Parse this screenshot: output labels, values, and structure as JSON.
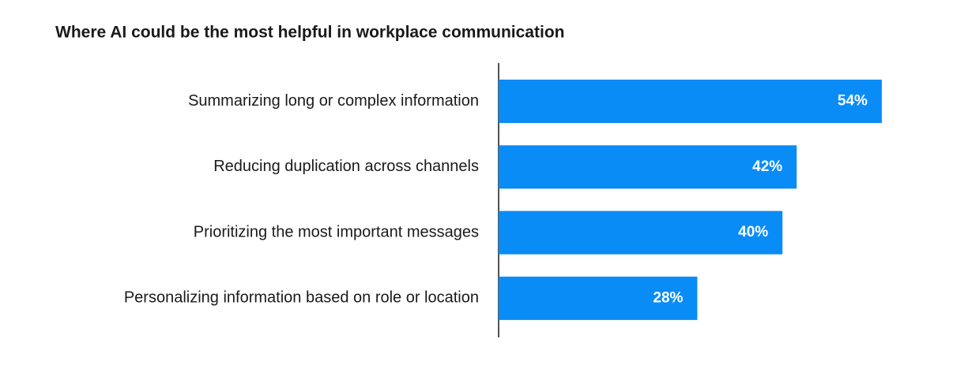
{
  "chart_data": {
    "type": "bar",
    "orientation": "horizontal",
    "title": "Where AI could be the most helpful in workplace communication",
    "categories": [
      "Summarizing long or complex information",
      "Reducing duplication across channels",
      "Prioritizing the most important messages",
      "Personalizing information based on role or location"
    ],
    "values": [
      54,
      42,
      40,
      28
    ],
    "value_labels": [
      "54%",
      "42%",
      "40%",
      "28%"
    ],
    "color": "#0a8cf7"
  }
}
